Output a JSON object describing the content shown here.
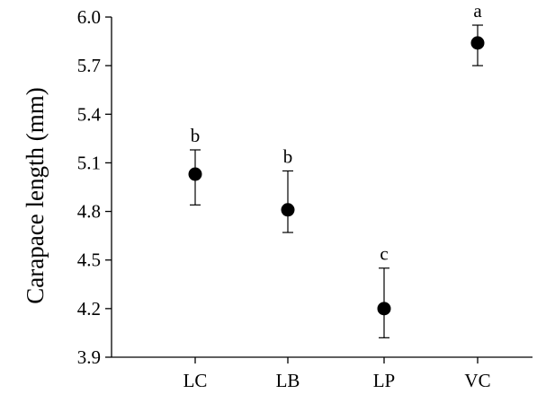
{
  "chart_data": {
    "type": "scatter",
    "title": "",
    "xlabel": "",
    "ylabel": "Carapace length (mm)",
    "ylim": [
      3.9,
      6.0
    ],
    "yticks": [
      "3.9",
      "4.2",
      "4.5",
      "4.8",
      "5.1",
      "5.4",
      "5.7",
      "6.0"
    ],
    "categories": [
      "LC",
      "LB",
      "LP",
      "VC"
    ],
    "values": [
      5.03,
      4.81,
      4.2,
      5.84
    ],
    "error_low": [
      4.84,
      4.67,
      4.02,
      5.7
    ],
    "error_high": [
      5.18,
      5.05,
      4.45,
      5.95
    ],
    "significance_letters": [
      "b",
      "b",
      "c",
      "a"
    ],
    "grid": false,
    "legend": "none",
    "marker_color": "#000000"
  }
}
